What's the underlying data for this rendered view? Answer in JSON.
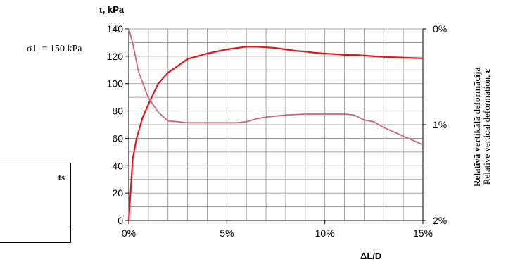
{
  "annotation": {
    "sigma_label": "σ1  = 150 kPa",
    "box_text": "ts",
    "box_mark": "."
  },
  "chart_data": {
    "type": "line",
    "y_title": "τ, kPa",
    "x_title": "ΔL/D",
    "y2_title_lv": "Relatīvā vertikālā deformācija",
    "y2_title_en": "Relative vertical deformation, ",
    "y2_title_symbol": "ε",
    "xlim": [
      0,
      15
    ],
    "ylim": [
      0,
      140
    ],
    "y2lim": [
      0,
      2
    ],
    "grid": true,
    "x_ticks": [
      0,
      5,
      10,
      15
    ],
    "x_tick_labels": [
      "0%",
      "5%",
      "10%",
      "15%"
    ],
    "y_ticks": [
      0,
      20,
      40,
      60,
      80,
      100,
      120,
      140
    ],
    "y_tick_labels": [
      "0",
      "20",
      "40",
      "60",
      "80",
      "100",
      "120",
      "140"
    ],
    "y2_ticks": [
      0,
      1,
      2
    ],
    "y2_tick_labels": [
      "0%",
      "1%",
      "2%"
    ],
    "series": [
      {
        "axis": "left",
        "color": "#e8141b",
        "x": [
          0,
          0.2,
          0.4,
          0.7,
          1.0,
          1.5,
          2.0,
          2.5,
          3.0,
          3.5,
          4.0,
          5.0,
          6.0,
          6.5,
          7.0,
          7.5,
          8.0,
          8.5,
          9.0,
          9.5,
          10.0,
          10.5,
          11.0,
          11.5,
          12.0,
          12.5,
          13.0,
          14.0,
          15.0
        ],
        "y": [
          0,
          45,
          60,
          75,
          85,
          100,
          108,
          113,
          118,
          120,
          122,
          125,
          127,
          127,
          126.5,
          126,
          125,
          124,
          123.5,
          122.5,
          122,
          121.5,
          121,
          121,
          120.5,
          120,
          119.5,
          119,
          118.5
        ]
      },
      {
        "axis": "right",
        "color": "#c86676",
        "x": [
          0,
          0.2,
          0.5,
          1.0,
          1.5,
          2.0,
          2.5,
          3.0,
          4.0,
          5.0,
          5.5,
          6.0,
          6.5,
          7.0,
          8.0,
          9.0,
          10.0,
          11.0,
          11.5,
          12.0,
          12.5,
          13.0,
          14.0,
          15.0
        ],
        "y": [
          0.0,
          0.15,
          0.45,
          0.72,
          0.87,
          0.96,
          0.97,
          0.98,
          0.98,
          0.98,
          0.98,
          0.97,
          0.94,
          0.92,
          0.9,
          0.89,
          0.89,
          0.89,
          0.9,
          0.95,
          0.97,
          1.03,
          1.12,
          1.21
        ]
      }
    ]
  }
}
